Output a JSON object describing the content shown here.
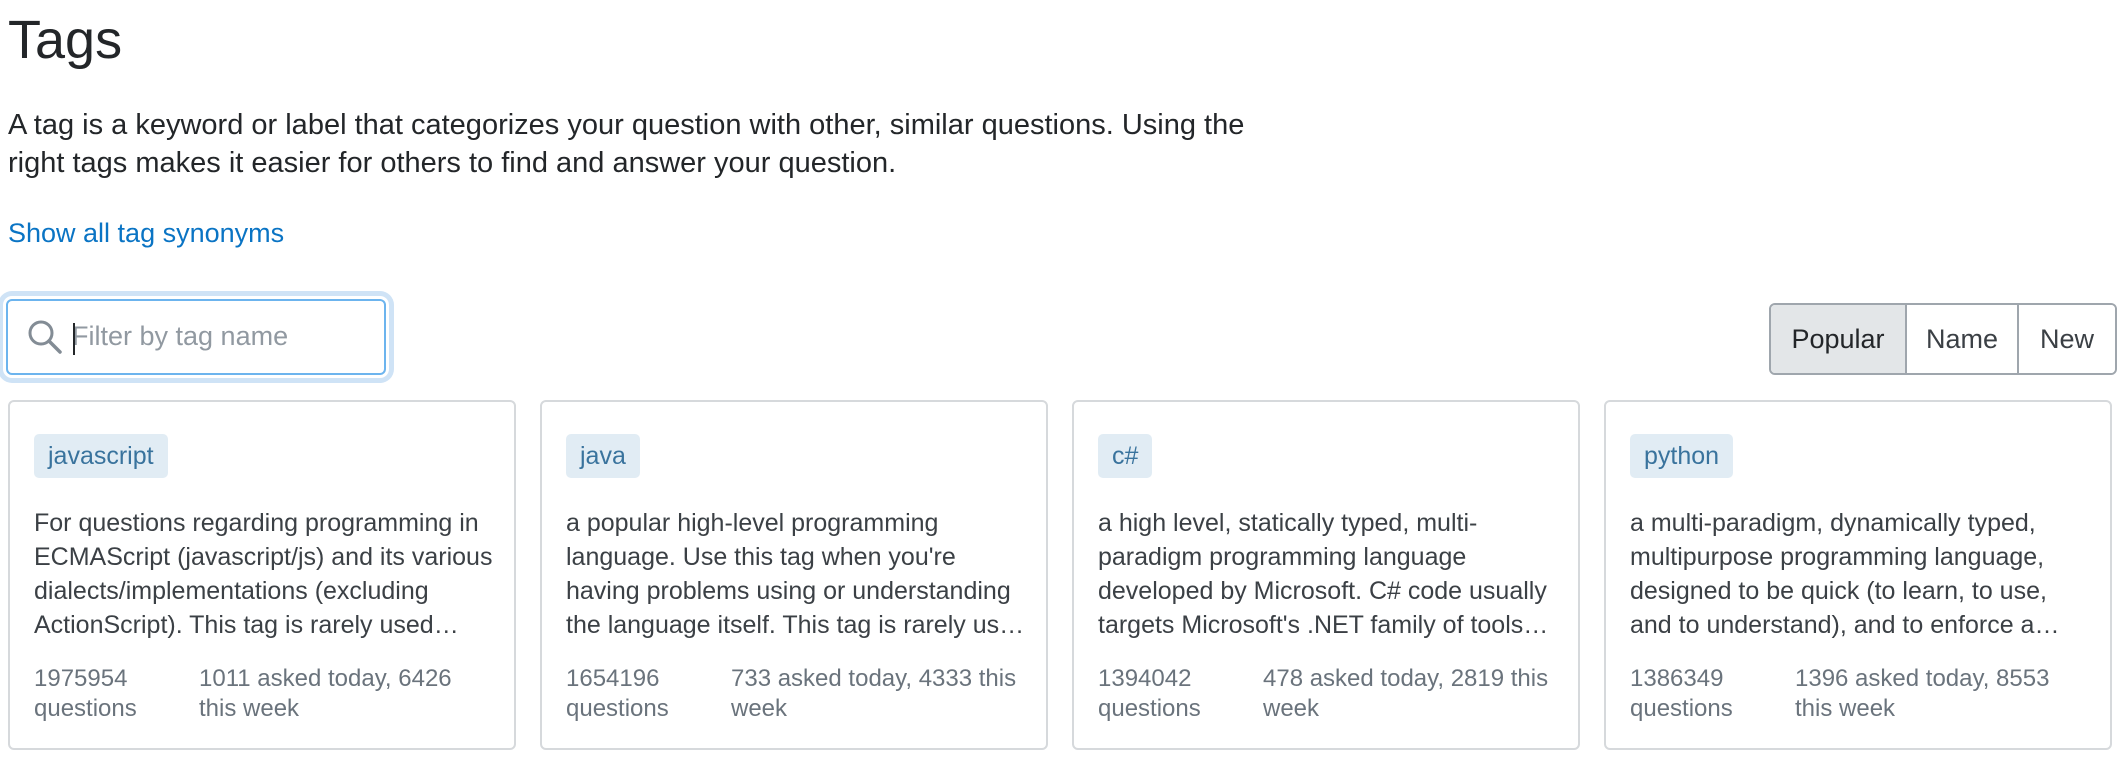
{
  "page": {
    "title": "Tags",
    "intro": "A tag is a keyword or label that categorizes your question with other, similar questions. Using the right tags makes it easier for others to find and answer your question.",
    "synonyms_link": "Show all tag synonyms"
  },
  "filter": {
    "placeholder": "Filter by tag name",
    "value": "",
    "icon": "search-icon"
  },
  "sort": {
    "options": [
      "Popular",
      "Name",
      "New"
    ],
    "selected": "Popular"
  },
  "tags": [
    {
      "name": "javascript",
      "description": "For questions regarding programming in ECMAScript (javascript/js) and its various dialects/implementations (excluding ActionScript). This tag is rarely used alone but is most often associated with the tags [node.js], [jquery], [json], and [html].",
      "questions": "1975954 questions",
      "recent": "1011 asked today, 6426 this week"
    },
    {
      "name": "java",
      "description": "a popular high-level programming language. Use this tag when you're having problems using or understanding the language itself. This tag is rarely used alone.",
      "questions": "1654196 questions",
      "recent": "733 asked today, 4333 this week"
    },
    {
      "name": "c#",
      "description": "a high level, statically typed, multi-paradigm programming language developed by Microsoft. C# code usually targets Microsoft's .NET family of tools and run-times.",
      "questions": "1394042 questions",
      "recent": "478 asked today, 2819 this week"
    },
    {
      "name": "python",
      "description": "a multi-paradigm, dynamically typed, multipurpose programming language, designed to be quick (to learn, to use, and to understand), and to enforce a clean and uniform syntax.",
      "questions": "1386349 questions",
      "recent": "1396 asked today, 8553 this week"
    }
  ],
  "colors": {
    "link": "#0a74c4",
    "tag_bg": "#e1ecf4",
    "tag_text": "#39739d",
    "focus_ring": "#cfe3f6",
    "active_sort_bg": "#e3e6e8"
  }
}
